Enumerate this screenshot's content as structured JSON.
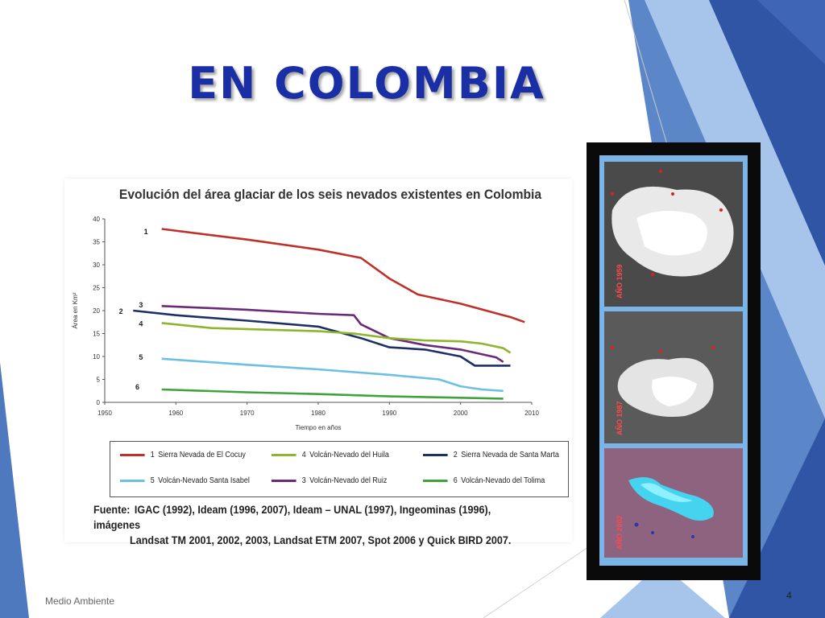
{
  "slide": {
    "title": "EN COLOMBIA",
    "footer": "Medio Ambiente",
    "page_number": "4"
  },
  "theme": {
    "accent_dark": "#2f55a4",
    "accent_mid": "#5b86c8",
    "accent_light": "#a7c4ea"
  },
  "chart_data": {
    "type": "line",
    "title": "Evolución del área glaciar de los seis nevados existentes en Colombia",
    "xlabel": "Tiempo en años",
    "ylabel": "Área en Km²",
    "xlim": [
      1950,
      2010
    ],
    "ylim": [
      0,
      40
    ],
    "x_ticks": [
      1950,
      1960,
      1970,
      1980,
      1990,
      2000,
      2010
    ],
    "y_ticks": [
      0,
      5,
      10,
      15,
      20,
      25,
      30,
      35,
      40
    ],
    "grid": false,
    "legend_position": "bottom",
    "series": [
      {
        "id": "1",
        "name": "Sierra Nevada de El Cocuy",
        "color": "#c0302a",
        "label_at": [
          1955.5,
          37.2
        ],
        "points": [
          [
            1958,
            37.8
          ],
          [
            1970,
            35.5
          ],
          [
            1980,
            33.3
          ],
          [
            1986,
            31.5
          ],
          [
            1990,
            27
          ],
          [
            1994,
            23.5
          ],
          [
            2000,
            21.5
          ],
          [
            2006,
            19
          ],
          [
            2007,
            18.6
          ],
          [
            2009,
            17.5
          ]
        ]
      },
      {
        "id": "2",
        "name": "Sierra Nevada de Santa Marta",
        "color": "#1c2f66",
        "label_at": [
          1952,
          19.8
        ],
        "points": [
          [
            1954,
            20
          ],
          [
            1960,
            19
          ],
          [
            1970,
            17.8
          ],
          [
            1980,
            16.5
          ],
          [
            1986,
            14
          ],
          [
            1990,
            12
          ],
          [
            1995,
            11.5
          ],
          [
            2000,
            10
          ],
          [
            2002,
            8
          ],
          [
            2007,
            8
          ]
        ]
      },
      {
        "id": "3",
        "name": "Volcán-Nevado del Ruiz",
        "color": "#6b2a79",
        "label_at": [
          1954.8,
          21.2
        ],
        "points": [
          [
            1958,
            21
          ],
          [
            1970,
            20.2
          ],
          [
            1980,
            19.3
          ],
          [
            1985,
            19
          ],
          [
            1986,
            17
          ],
          [
            1990,
            14
          ],
          [
            1995,
            12.5
          ],
          [
            2000,
            11.5
          ],
          [
            2005,
            9.8
          ],
          [
            2006,
            8.8
          ]
        ]
      },
      {
        "id": "4",
        "name": "Volcán-Nevado del Huila",
        "color": "#8db62e",
        "label_at": [
          1954.8,
          17.1
        ],
        "points": [
          [
            1958,
            17.3
          ],
          [
            1965,
            16.2
          ],
          [
            1980,
            15.5
          ],
          [
            1985,
            15
          ],
          [
            1990,
            14
          ],
          [
            1995,
            13.5
          ],
          [
            2000,
            13.3
          ],
          [
            2003,
            12.8
          ],
          [
            2006,
            11.8
          ],
          [
            2007,
            10.8
          ]
        ]
      },
      {
        "id": "5",
        "name": "Volcán-Nevado Santa Isabel",
        "color": "#6cc0e3",
        "label_at": [
          1954.8,
          9.8
        ],
        "points": [
          [
            1958,
            9.5
          ],
          [
            1970,
            8.2
          ],
          [
            1980,
            7.2
          ],
          [
            1990,
            6
          ],
          [
            1997,
            5
          ],
          [
            2000,
            3.5
          ],
          [
            2003,
            2.8
          ],
          [
            2006,
            2.5
          ]
        ]
      },
      {
        "id": "6",
        "name": "Volcán-Nevado del Tolima",
        "color": "#3fa33c",
        "label_at": [
          1954.3,
          3.3
        ],
        "points": [
          [
            1958,
            2.8
          ],
          [
            1970,
            2.2
          ],
          [
            1980,
            1.8
          ],
          [
            1990,
            1.3
          ],
          [
            2000,
            1
          ],
          [
            2006,
            0.8
          ]
        ]
      }
    ],
    "legend_order": [
      "1",
      "4",
      "2",
      "5",
      "3",
      "6"
    ],
    "source_label": "Fuente:",
    "source_line1": "IGAC (1992), Ideam (1996, 2007), Ideam – UNAL (1997), Ingeominas (1996), imágenes",
    "source_line2": "Landsat TM 2001, 2002, 2003, Landsat ETM 2007, Spot 2006 y Quick BIRD 2007."
  },
  "photo_strip": {
    "panels": [
      {
        "year": "AÑO 1959"
      },
      {
        "year": "AÑO 1987"
      },
      {
        "year": "AÑO 2002"
      }
    ]
  }
}
